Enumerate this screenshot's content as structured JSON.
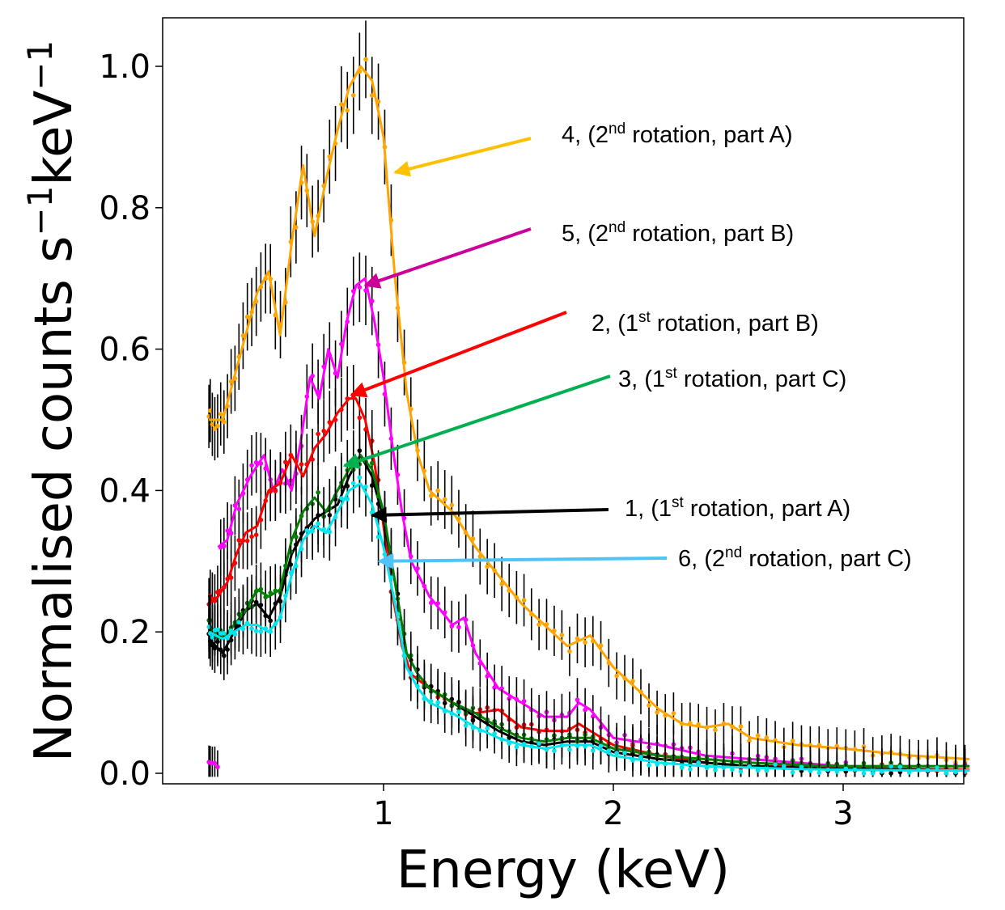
{
  "chart_data": {
    "type": "line",
    "title": "",
    "xlabel": "Energy  (keV)",
    "ylabel_main": "Normalised counts s",
    "ylabel_exp1": "−1",
    "ylabel_mid": "keV",
    "ylabel_exp2": "−1",
    "xlim": [
      0.0,
      3.55
    ],
    "ylim": [
      -0.02,
      1.06
    ],
    "xticks": [
      {
        "value": 1,
        "label": "1"
      },
      {
        "value": 2,
        "label": "2"
      },
      {
        "value": 3,
        "label": "3"
      }
    ],
    "yticks": [
      {
        "value": 0.0,
        "label": "0.0"
      },
      {
        "value": 0.2,
        "label": "0.2"
      },
      {
        "value": 0.4,
        "label": "0.4"
      },
      {
        "value": 0.6,
        "label": "0.6"
      },
      {
        "value": 0.8,
        "label": "0.8"
      },
      {
        "value": 1.0,
        "label": "1.0"
      }
    ],
    "series": [
      {
        "id": "s4",
        "name": "4, (2nd rotation, part A)",
        "color": "#FFA500",
        "x": [
          0.24,
          0.3,
          0.35,
          0.4,
          0.45,
          0.5,
          0.55,
          0.6,
          0.65,
          0.7,
          0.75,
          0.8,
          0.85,
          0.9,
          0.95,
          1.0,
          1.05,
          1.1,
          1.15,
          1.2,
          1.3,
          1.4,
          1.5,
          1.6,
          1.7,
          1.8,
          1.9,
          2.0,
          2.1,
          2.2,
          2.3,
          2.4,
          2.5,
          2.6,
          2.8,
          3.0,
          3.3,
          3.55
        ],
        "y": [
          0.5,
          0.5,
          0.56,
          0.62,
          0.68,
          0.71,
          0.62,
          0.75,
          0.86,
          0.76,
          0.84,
          0.91,
          0.97,
          1.0,
          0.98,
          0.9,
          0.7,
          0.54,
          0.45,
          0.4,
          0.37,
          0.32,
          0.28,
          0.24,
          0.21,
          0.18,
          0.195,
          0.15,
          0.12,
          0.09,
          0.07,
          0.065,
          0.07,
          0.05,
          0.04,
          0.035,
          0.025,
          0.02
        ]
      },
      {
        "id": "s5",
        "name": "5, (2nd rotation, part B)",
        "color": "#FF00FF",
        "x": [
          0.28,
          0.32,
          0.36,
          0.42,
          0.48,
          0.52,
          0.56,
          0.6,
          0.64,
          0.68,
          0.72,
          0.76,
          0.8,
          0.84,
          0.88,
          0.92,
          0.96,
          1.0,
          1.04,
          1.08,
          1.12,
          1.2,
          1.3,
          1.35,
          1.4,
          1.5,
          1.6,
          1.7,
          1.8,
          1.85,
          1.9,
          2.0,
          2.2,
          2.4,
          2.6,
          2.8,
          3.0,
          3.3,
          3.55
        ],
        "y": [
          0.32,
          0.33,
          0.38,
          0.42,
          0.45,
          0.4,
          0.43,
          0.4,
          0.47,
          0.56,
          0.53,
          0.6,
          0.56,
          0.64,
          0.69,
          0.7,
          0.64,
          0.56,
          0.46,
          0.37,
          0.3,
          0.25,
          0.21,
          0.22,
          0.17,
          0.12,
          0.1,
          0.08,
          0.08,
          0.1,
          0.09,
          0.05,
          0.04,
          0.025,
          0.02,
          0.015,
          0.01,
          0.01,
          0.01
        ]
      },
      {
        "id": "s2",
        "name": "2, (1st rotation, part B)",
        "color": "#FF0000",
        "x": [
          0.24,
          0.28,
          0.32,
          0.36,
          0.4,
          0.45,
          0.5,
          0.55,
          0.6,
          0.65,
          0.7,
          0.75,
          0.8,
          0.85,
          0.88,
          0.92,
          0.96,
          1.0,
          1.04,
          1.08,
          1.12,
          1.2,
          1.3,
          1.4,
          1.5,
          1.6,
          1.7,
          1.8,
          1.85,
          1.9,
          2.0,
          2.2,
          2.4,
          2.6,
          2.8,
          3.0,
          3.3,
          3.55
        ],
        "y": [
          0.24,
          0.25,
          0.27,
          0.31,
          0.34,
          0.35,
          0.4,
          0.41,
          0.45,
          0.42,
          0.46,
          0.48,
          0.51,
          0.53,
          0.53,
          0.5,
          0.44,
          0.35,
          0.25,
          0.18,
          0.14,
          0.12,
          0.1,
          0.085,
          0.09,
          0.065,
          0.06,
          0.06,
          0.07,
          0.06,
          0.04,
          0.025,
          0.015,
          0.01,
          0.01,
          0.008,
          0.006,
          0.005
        ]
      },
      {
        "id": "s1",
        "name": "1, (1st rotation, part A)",
        "color": "#000000",
        "x": [
          0.24,
          0.3,
          0.35,
          0.4,
          0.45,
          0.5,
          0.55,
          0.6,
          0.65,
          0.7,
          0.75,
          0.8,
          0.85,
          0.9,
          0.95,
          1.0,
          1.05,
          1.1,
          1.15,
          1.2,
          1.3,
          1.4,
          1.5,
          1.6,
          1.7,
          1.8,
          1.9,
          2.0,
          2.2,
          2.4,
          2.6,
          2.8,
          3.0,
          3.3,
          3.55
        ],
        "y": [
          0.19,
          0.17,
          0.2,
          0.23,
          0.24,
          0.22,
          0.25,
          0.31,
          0.34,
          0.36,
          0.37,
          0.38,
          0.42,
          0.45,
          0.42,
          0.36,
          0.27,
          0.17,
          0.14,
          0.12,
          0.1,
          0.08,
          0.06,
          0.045,
          0.04,
          0.045,
          0.045,
          0.03,
          0.02,
          0.015,
          0.01,
          0.008,
          0.006,
          0.005,
          0.004
        ]
      },
      {
        "id": "s3",
        "name": "3, (1st rotation, part C)",
        "color": "#008000",
        "x": [
          0.24,
          0.3,
          0.35,
          0.4,
          0.45,
          0.5,
          0.55,
          0.6,
          0.65,
          0.7,
          0.75,
          0.8,
          0.85,
          0.9,
          0.95,
          1.0,
          1.05,
          1.1,
          1.15,
          1.2,
          1.3,
          1.4,
          1.5,
          1.6,
          1.7,
          1.8,
          1.9,
          2.0,
          2.2,
          2.4,
          2.6,
          2.8,
          3.0,
          3.3,
          3.55
        ],
        "y": [
          0.21,
          0.19,
          0.21,
          0.23,
          0.26,
          0.25,
          0.26,
          0.33,
          0.37,
          0.39,
          0.37,
          0.4,
          0.43,
          0.45,
          0.43,
          0.37,
          0.27,
          0.17,
          0.14,
          0.12,
          0.1,
          0.085,
          0.065,
          0.05,
          0.045,
          0.05,
          0.05,
          0.035,
          0.025,
          0.02,
          0.015,
          0.012,
          0.01,
          0.01,
          0.01
        ]
      },
      {
        "id": "s6",
        "name": "6, (2nd rotation, part C)",
        "color": "#00E5EE",
        "x": [
          0.24,
          0.3,
          0.35,
          0.4,
          0.45,
          0.5,
          0.55,
          0.6,
          0.65,
          0.7,
          0.75,
          0.8,
          0.85,
          0.9,
          0.95,
          1.0,
          1.05,
          1.1,
          1.15,
          1.2,
          1.3,
          1.4,
          1.5,
          1.6,
          1.7,
          1.8,
          1.9,
          2.0,
          2.2,
          2.4,
          2.6,
          2.8,
          3.0,
          3.3,
          3.55
        ],
        "y": [
          0.2,
          0.19,
          0.2,
          0.21,
          0.21,
          0.2,
          0.22,
          0.28,
          0.33,
          0.35,
          0.34,
          0.37,
          0.4,
          0.41,
          0.38,
          0.32,
          0.24,
          0.15,
          0.12,
          0.1,
          0.085,
          0.065,
          0.05,
          0.04,
          0.035,
          0.04,
          0.04,
          0.025,
          0.015,
          0.01,
          0.008,
          0.006,
          0.005,
          0.004,
          0.004
        ]
      }
    ],
    "annotations": [
      {
        "id": "a4",
        "label": "4, (2nd rotation, part A)",
        "number": "4, (2",
        "sup": "nd",
        "rest": " rotation, part A)",
        "color": "#FFC000",
        "target": [
          1.05,
          0.85
        ]
      },
      {
        "id": "a5",
        "label": "5, (2nd rotation, part B)",
        "number": "5, (2",
        "sup": "nd",
        "rest": " rotation, part B)",
        "color": "#CC0099",
        "target": [
          0.92,
          0.69
        ]
      },
      {
        "id": "a2",
        "label": "2, (1st rotation, part B)",
        "number": "2, (1",
        "sup": "st",
        "rest": " rotation, part B)",
        "color": "#FF0000",
        "target": [
          0.86,
          0.535
        ]
      },
      {
        "id": "a3",
        "label": "3, (1st rotation, part C)",
        "number": "3, (1",
        "sup": "st",
        "rest": " rotation, part C)",
        "color": "#00B050",
        "target": [
          0.83,
          0.435
        ]
      },
      {
        "id": "a1",
        "label": "1, (1st rotation, part A)",
        "number": "1, (1",
        "sup": "st",
        "rest": " rotation, part A)",
        "color": "#000000",
        "target": [
          0.95,
          0.365
        ]
      },
      {
        "id": "a6",
        "label": "6, (2nd rotation, part C)",
        "number": "6, (2",
        "sup": "nd",
        "rest": " rotation, part C)",
        "color": "#4FC3F7",
        "target": [
          0.98,
          0.3
        ]
      }
    ]
  }
}
